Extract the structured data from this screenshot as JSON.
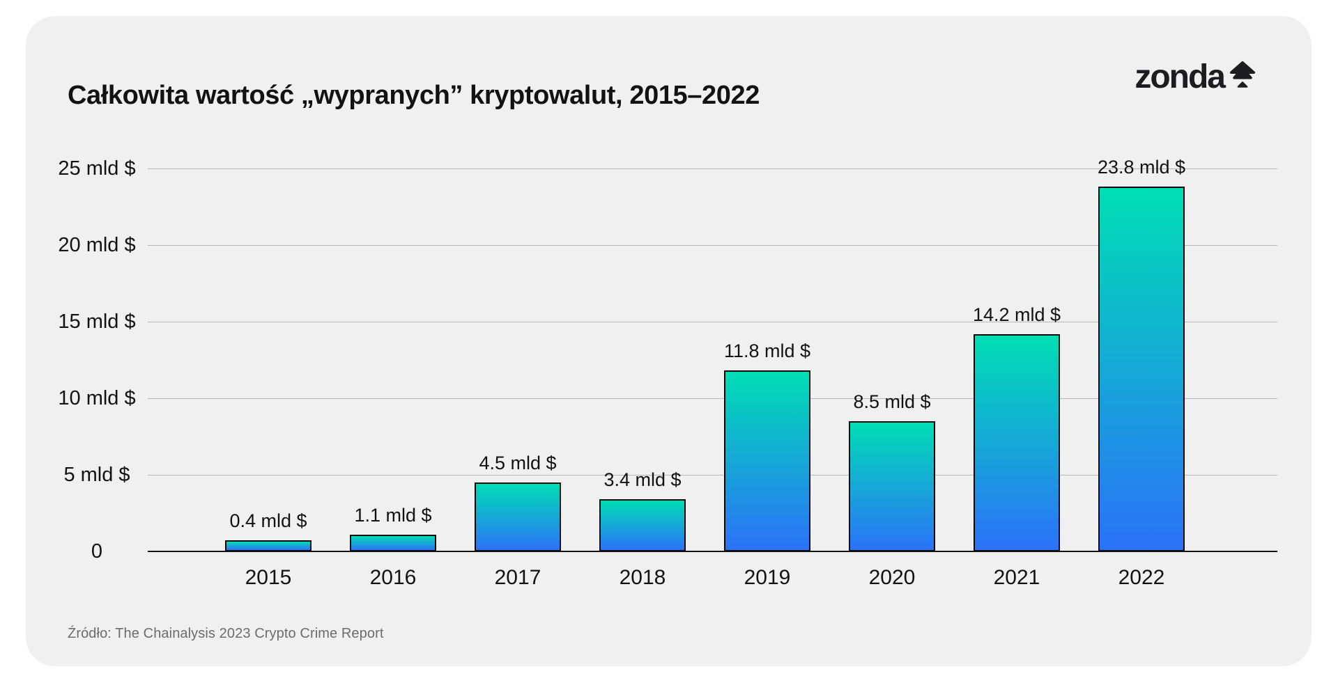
{
  "header": {
    "title": "Całkowita wartość „wypranych” kryptowalut, 2015–2022",
    "brand": "zonda",
    "brand_icon": "zonda-tree-arrow-icon"
  },
  "chart_data": {
    "type": "bar",
    "title": "Całkowita wartość „wypranych” kryptowalut, 2015–2022",
    "categories": [
      "2015",
      "2016",
      "2017",
      "2018",
      "2019",
      "2020",
      "2021",
      "2022"
    ],
    "values": [
      0.4,
      1.1,
      4.5,
      3.4,
      11.8,
      8.5,
      14.2,
      23.8
    ],
    "bar_labels": [
      "0.4 mld $",
      "1.1 mld $",
      "4.5 mld $",
      "3.4 mld $",
      "11.8 mld $",
      "8.5 mld $",
      "14.2 mld $",
      "23.8 mld $"
    ],
    "unit": "mld $",
    "xlabel": "",
    "ylabel": "",
    "ylim": [
      0,
      25
    ],
    "y_ticks": [
      {
        "value": 0,
        "label": "0"
      },
      {
        "value": 5,
        "label": "5 mld $"
      },
      {
        "value": 10,
        "label": "10 mld $"
      },
      {
        "value": 15,
        "label": "15 mld $"
      },
      {
        "value": 20,
        "label": "20 mld $"
      },
      {
        "value": 25,
        "label": "25 mld $"
      }
    ],
    "grid": true,
    "legend": "none",
    "bar_gradient_top": "#00deb4",
    "bar_gradient_bottom": "#2b72f8",
    "bar_border_color": "#0a0a0a"
  },
  "footer": {
    "source": "Źródło: The Chainalysis 2023 Crypto Crime Report"
  },
  "colors": {
    "page_bg": "#ffffff",
    "card_bg": "#f0f0f1",
    "grid_line": "#b6b6b8",
    "axis_line": "#121212",
    "text_primary": "#121212",
    "text_muted": "#6c6c6e"
  }
}
